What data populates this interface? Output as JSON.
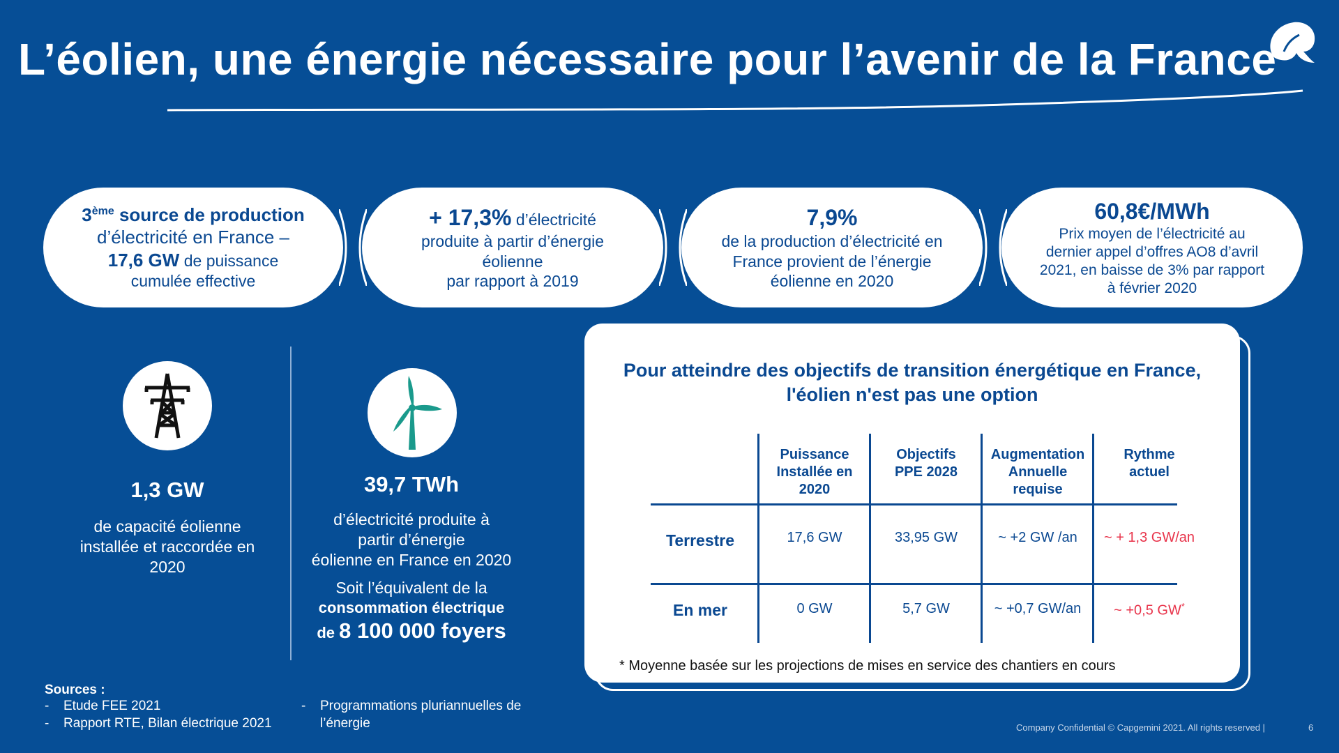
{
  "title": "L’éolien, une énergie nécessaire pour l’avenir de la France",
  "pills": [
    {
      "sup_num": "3",
      "sup": "ème",
      "lead": " source de production",
      "line2": "d’électricité en France –",
      "line3_bold": "17,6 GW",
      "line3": " de puissance",
      "line4": "cumulée effective"
    },
    {
      "big": "+ 17,3%",
      "rest1": " d’électricité",
      "line2": "produite à partir d’énergie",
      "line3": "éolienne",
      "line4": "par rapport à 2019"
    },
    {
      "big": "7,9%",
      "line1": "de la production d’électricité en",
      "line2": "France provient de l’énergie",
      "line3": "éolienne en 2020"
    },
    {
      "big": "60,8€/MWh",
      "line1": "Prix moyen de l’électricité au",
      "line2": "dernier appel d’offres AO8 d’avril",
      "line3": "2021, en baisse de 3% par rapport",
      "line4": "à février 2020"
    }
  ],
  "stat_left": {
    "value": "1,3 GW",
    "line1": "de capacité éolienne",
    "line2": "installée et raccordée en",
    "line3": "2020"
  },
  "stat_right": {
    "value": "39,7 TWh",
    "line1": "d’électricité produite à",
    "line2": "partir d’énergie",
    "line3": "éolienne en France en 2020",
    "line4": "Soit l’équivalent de la",
    "line5": "consommation électrique",
    "line6_small": "de ",
    "line6_big": "8 100 000 foyers"
  },
  "card": {
    "title1": "Pour atteindre des objectifs de transition énergétique en France,",
    "title2": "l'éolien n'est pas une option",
    "headers": [
      [
        "Puissance",
        "Installée en",
        "2020"
      ],
      [
        "Objectifs",
        "PPE 2028",
        ""
      ],
      [
        "Augmentation",
        "Annuelle",
        "requise"
      ],
      [
        "Rythme",
        "actuel",
        ""
      ]
    ],
    "rows": [
      {
        "label": "Terrestre",
        "cells": [
          "17,6 GW",
          "33,95 GW",
          "~ +2 GW /an",
          "~ + 1,3 GW/an"
        ]
      },
      {
        "label": "En mer",
        "cells": [
          "0 GW",
          "5,7 GW",
          "~ +0,7 GW/an",
          "~ +0,5 GW"
        ],
        "last_sup": "*"
      }
    ],
    "footnote": "* Moyenne basée sur les projections de mises en service des chantiers en cours"
  },
  "sources": {
    "head": "Sources :",
    "items": [
      "Etude FEE 2021",
      "Rapport RTE, Bilan électrique 2021",
      "Programmations pluriannuelles de",
      "l’énergie"
    ],
    "dash": "-"
  },
  "footer": {
    "confidential": "Company Confidential © Capgemini 2021. All rights reserved  |",
    "page": "6"
  },
  "colors": {
    "background": "#064e96",
    "text_dark": "#0a4891",
    "accent_red": "#e8334a",
    "turbine": "#1a9a8c"
  }
}
